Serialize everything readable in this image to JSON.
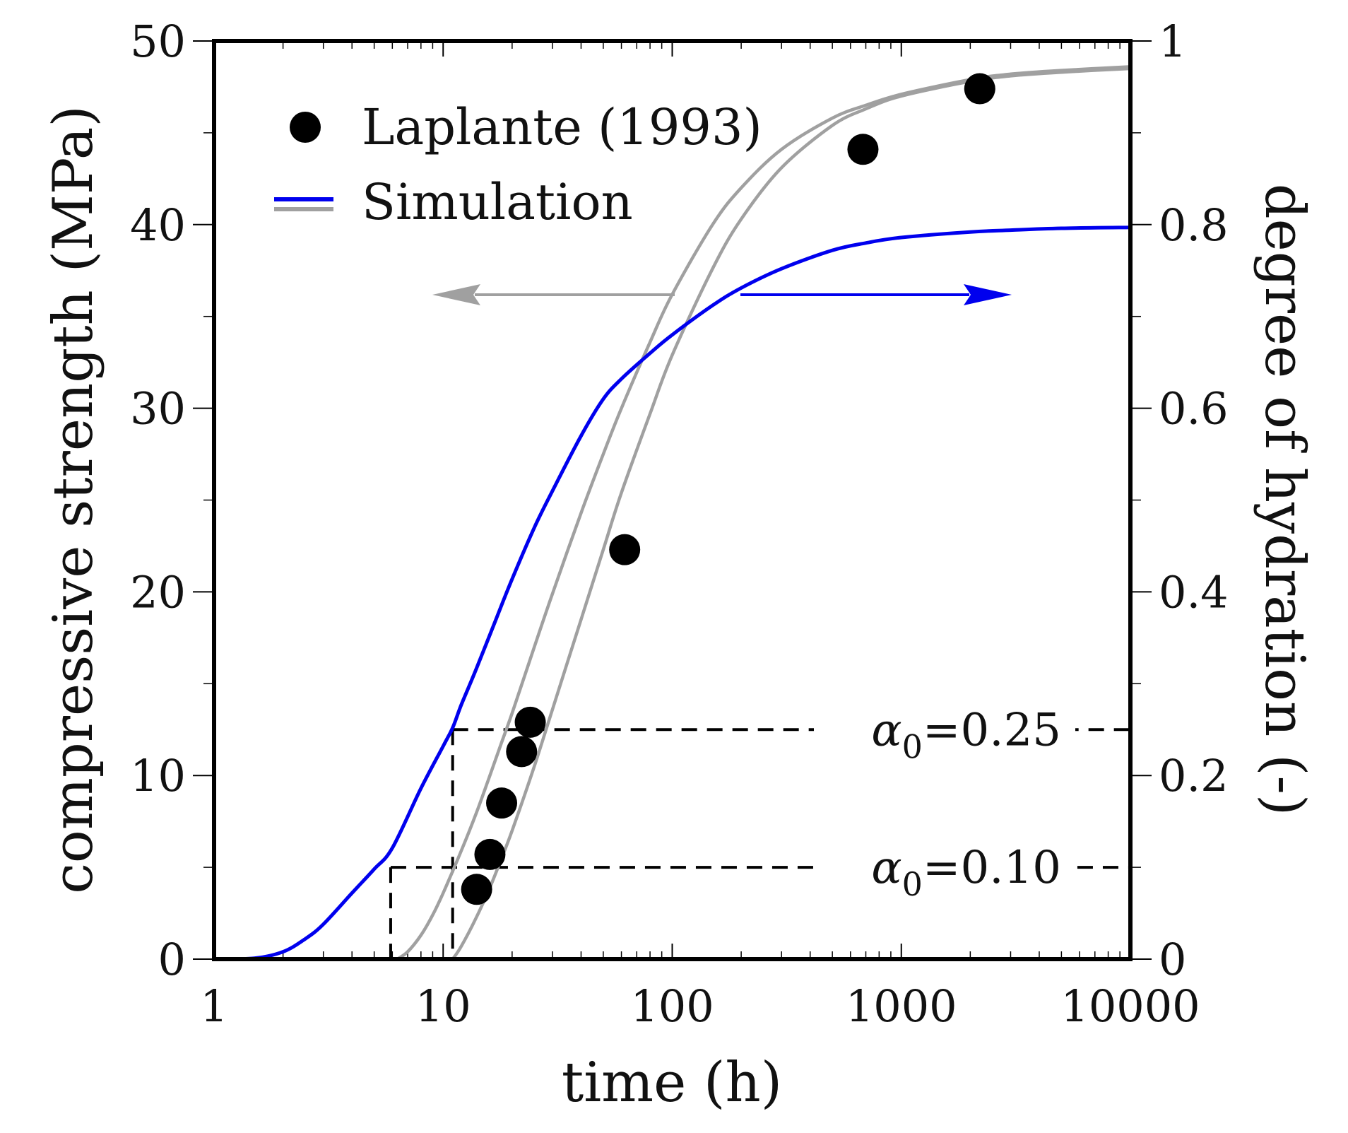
{
  "chart_data": {
    "type": "line",
    "title": "",
    "xlabel": "time (h)",
    "ylabel_left": "compressive strength (MPa)",
    "ylabel_right": "degree of hydration (-)",
    "x_scale": "log",
    "xlim": [
      1,
      10000
    ],
    "ylim_left": [
      0,
      50
    ],
    "ylim_right": [
      0,
      1
    ],
    "x_ticks": [
      "1",
      "10",
      "100",
      "1000",
      "10000"
    ],
    "y_left_ticks": [
      "0",
      "10",
      "20",
      "30",
      "40",
      "50"
    ],
    "y_right_ticks": [
      "0",
      "0.2",
      "0.4",
      "0.6",
      "0.8",
      "1"
    ],
    "legend_position": "top-left",
    "legend": [
      {
        "label": "Laplante (1993)",
        "marker": "circle",
        "color": "#000000"
      },
      {
        "label": "Simulation",
        "marker": "lines",
        "colors": [
          "#0000ee",
          "#a0a0a0"
        ]
      }
    ],
    "measured": {
      "name": "Laplante (1993)",
      "axis": "left",
      "x": [
        14,
        16,
        18,
        22,
        24,
        62,
        680,
        2200
      ],
      "y": [
        3.8,
        5.7,
        8.5,
        11.3,
        12.9,
        22.3,
        44.1,
        47.4
      ]
    },
    "series": [
      {
        "name": "Simulation (degree of hydration)",
        "axis": "right",
        "color": "#0000ee",
        "x": [
          1,
          1.5,
          2,
          2.5,
          3,
          4,
          5,
          6,
          8,
          10,
          11,
          12,
          14,
          17,
          20,
          25,
          30,
          40,
          50,
          60,
          80,
          100,
          150,
          200,
          300,
          500,
          700,
          1000,
          2000,
          3000,
          5000,
          10000
        ],
        "y": [
          0,
          0.001,
          0.008,
          0.022,
          0.038,
          0.072,
          0.098,
          0.121,
          0.186,
          0.232,
          0.252,
          0.277,
          0.317,
          0.37,
          0.414,
          0.47,
          0.51,
          0.57,
          0.61,
          0.632,
          0.66,
          0.68,
          0.712,
          0.731,
          0.752,
          0.772,
          0.78,
          0.786,
          0.792,
          0.794,
          0.796,
          0.797
        ]
      },
      {
        "name": "Simulation strength (alpha0 = 0.10)",
        "axis": "left",
        "color": "#a0a0a0",
        "x": [
          6.3,
          7,
          8,
          9,
          10,
          12,
          14,
          16,
          18,
          20,
          25,
          30,
          40,
          50,
          60,
          80,
          100,
          150,
          200,
          300,
          500,
          700,
          1000,
          2000,
          3000,
          5000,
          10000
        ],
        "y": [
          0,
          0.4,
          1.3,
          2.4,
          3.6,
          5.9,
          8.0,
          10.0,
          11.8,
          13.4,
          17.0,
          19.9,
          24.3,
          27.5,
          30.0,
          33.6,
          36.2,
          40.0,
          42.0,
          44.1,
          45.8,
          46.5,
          47.1,
          47.9,
          48.2,
          48.4,
          48.6
        ]
      },
      {
        "name": "Simulation strength (alpha0 = 0.25)",
        "axis": "left",
        "color": "#a0a0a0",
        "x": [
          11,
          12,
          14,
          16,
          18,
          20,
          25,
          30,
          40,
          50,
          60,
          80,
          100,
          150,
          200,
          300,
          500,
          700,
          1000,
          2000,
          3000,
          5000,
          10000
        ],
        "y": [
          0,
          0.7,
          2.3,
          3.9,
          5.5,
          7.0,
          10.5,
          13.6,
          18.5,
          22.3,
          25.4,
          29.7,
          32.9,
          37.6,
          40.3,
          43.1,
          45.4,
          46.3,
          47.0,
          47.8,
          48.1,
          48.3,
          48.5
        ]
      }
    ],
    "annotations": [
      {
        "label": "α",
        "subscript": "0",
        "value_text": "=0.25",
        "level_right": 0.25,
        "x_drop": 11.0
      },
      {
        "label": "α",
        "subscript": "0",
        "value_text": "=0.10",
        "level_right": 0.1,
        "x_drop": 5.9
      }
    ],
    "direction_arrows": [
      {
        "direction": "left",
        "color": "#a0a0a0",
        "meaning": "grey curves read on left axis"
      },
      {
        "direction": "right",
        "color": "#0000ee",
        "meaning": "blue curve read on right axis"
      }
    ]
  }
}
